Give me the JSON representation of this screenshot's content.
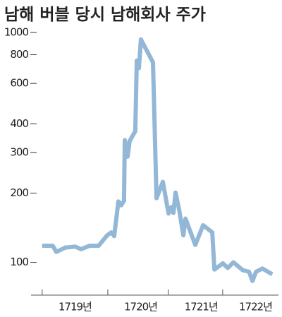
{
  "chart_data": {
    "type": "line",
    "title": "남해 버블 당시 남해회사 주가",
    "log_scale": true,
    "x": [
      1719.0,
      1719.161,
      1719.215,
      1719.355,
      1719.505,
      1719.591,
      1719.72,
      1719.86,
      1719.989,
      1720.054,
      1720.097,
      1720.161,
      1720.204,
      1720.247,
      1720.258,
      1720.301,
      1720.333,
      1720.419,
      1720.441,
      1720.473,
      1720.505,
      1720.688,
      1720.742,
      1720.839,
      1720.925,
      1720.968,
      1721.0,
      1721.032,
      1721.086,
      1721.151,
      1721.183,
      1721.333,
      1721.452,
      1721.591,
      1721.624,
      1721.753,
      1721.828,
      1721.914,
      1722.054,
      1722.151,
      1722.204,
      1722.258,
      1722.355,
      1722.505
    ],
    "series": [
      {
        "color": "#93b7d6",
        "values": [
          118,
          118,
          111,
          116,
          117,
          114,
          118,
          118,
          131,
          135,
          130,
          184,
          177,
          185,
          340,
          288,
          337,
          372,
          754,
          699,
          932,
          741,
          190,
          224,
          163,
          174,
          164,
          201,
          170,
          131,
          155,
          119,
          145,
          135,
          93,
          99,
          94.5,
          100,
          92.5,
          91,
          83,
          91,
          94,
          88.7
        ]
      }
    ],
    "xlim": [
      1718.83,
      1722.6
    ],
    "xticks": [
      {
        "value": 1719.5,
        "label": "1719년"
      },
      {
        "value": 1720.5,
        "label": "1720년"
      },
      {
        "value": 1721.42,
        "label": "1721년"
      },
      {
        "value": 1722.25,
        "label": "1722년"
      }
    ],
    "ylim": [
      72,
      1050
    ],
    "yticks": [
      100,
      200,
      300,
      400,
      600,
      800,
      1000
    ]
  }
}
